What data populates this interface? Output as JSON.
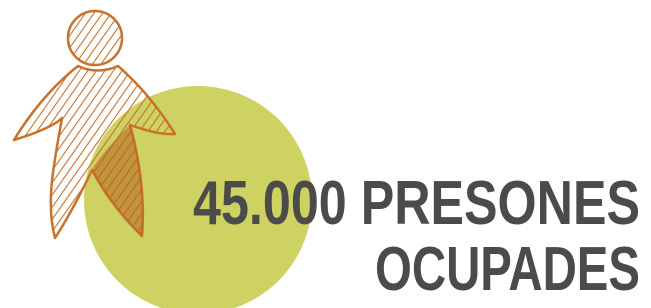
{
  "headline": {
    "line1": "45.000 PRESONES",
    "line2": "OCUPADES"
  }
}
